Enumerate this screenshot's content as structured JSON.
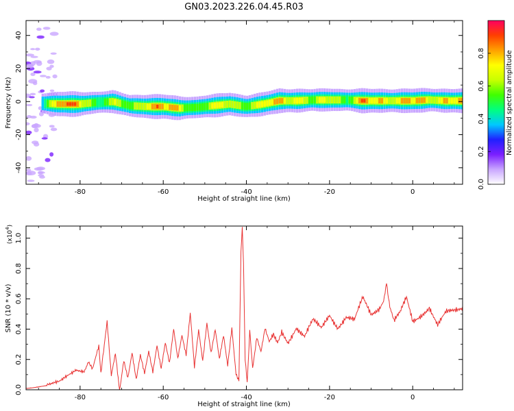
{
  "chart_data": [
    {
      "type": "heatmap",
      "title": "GN03.2023.226.04.45.R03",
      "xlabel": "Height of straight line (km)",
      "ylabel": "Frequency (Hz)",
      "xlim": [
        -93,
        12
      ],
      "ylim": [
        -50,
        49
      ],
      "x_ticks": [
        -80,
        -60,
        -40,
        -20,
        0
      ],
      "y_ticks": [
        -40,
        -20,
        0,
        20,
        40
      ],
      "colorbar": {
        "label": "Normalized spectral amplitude",
        "range": [
          0,
          1
        ],
        "ticks": [
          0.0,
          0.2,
          0.4,
          0.6,
          0.8
        ],
        "tick_labels": [
          "0.0",
          "0.2",
          "0.4",
          "0.6",
          "0.8"
        ],
        "colormap": [
          "#ffffff",
          "#c9a6ff",
          "#7b1fff",
          "#2020ff",
          "#00c8ff",
          "#00ff80",
          "#40ff00",
          "#c8ff00",
          "#ffff00",
          "#ffa000",
          "#ff4000",
          "#ff0060"
        ]
      },
      "ridge": {
        "x": [
          -90,
          -85,
          -80,
          -76,
          -72,
          -68,
          -64,
          -60,
          -56,
          -52,
          -48,
          -44,
          -40,
          -36,
          -32,
          -28,
          -24,
          -20,
          -16,
          -12,
          -8,
          -4,
          0,
          4,
          8,
          11
        ],
        "freq": [
          -1,
          -1.5,
          -1.5,
          -0.5,
          0,
          -2.5,
          -3,
          -3,
          -4,
          -3.5,
          -2.5,
          -1.5,
          -3,
          -1.5,
          0.5,
          0.5,
          1,
          1,
          1,
          0.5,
          0.5,
          0.5,
          0.5,
          1,
          0.5,
          0.5
        ],
        "amplitude": [
          0.4,
          0.95,
          0.95,
          0.6,
          0.7,
          0.6,
          0.95,
          0.9,
          0.85,
          0.6,
          0.75,
          0.8,
          0.7,
          0.8,
          0.95,
          0.9,
          0.6,
          0.85,
          0.6,
          0.9,
          0.9,
          0.85,
          0.9,
          0.85,
          0.9,
          0.85
        ]
      }
    },
    {
      "type": "line",
      "xlabel": "Height of straight line (km)",
      "ylabel": "SNR (10 * v/v)",
      "y_multiplier": "(x10",
      "y_multiplier_exp": "4",
      "y_multiplier_close": ")",
      "xlim": [
        -93,
        12
      ],
      "ylim": [
        0,
        1.08
      ],
      "x_ticks": [
        -80,
        -60,
        -40,
        -20,
        0
      ],
      "y_ticks": [
        0.0,
        0.2,
        0.4,
        0.6,
        0.8,
        1.0
      ],
      "y_tick_labels": [
        "0.0",
        "0.2",
        "0.4",
        "0.6",
        "0.8",
        "1.0"
      ],
      "color": "#e83030",
      "series": [
        {
          "x": [
            -93,
            -90,
            -87,
            -85,
            -83,
            -81,
            -79,
            -78,
            -77,
            -75.5,
            -75,
            -74.2,
            -73.5,
            -72.5,
            -71.5,
            -70.5,
            -69.5,
            -68.5,
            -67.5,
            -66.5,
            -65.5,
            -64.5,
            -63.5,
            -62.5,
            -61.5,
            -60.5,
            -59.5,
            -58.5,
            -57.5,
            -56.5,
            -55.5,
            -54.5,
            -53.5,
            -52.5,
            -51.5,
            -50.5,
            -49.5,
            -48.5,
            -47.5,
            -46.5,
            -45.5,
            -44.5,
            -43.5,
            -42.5,
            -41.8,
            -41.3,
            -41,
            -40.7,
            -40.3,
            -39.8,
            -39.2,
            -38.5,
            -37.5,
            -36.5,
            -35.5,
            -34.5,
            -33.5,
            -32.5,
            -31.5,
            -30,
            -28,
            -26,
            -24,
            -22,
            -20,
            -18,
            -16,
            -14,
            -12,
            -10,
            -8,
            -7,
            -6.3,
            -5.5,
            -4.5,
            -3,
            -1.5,
            0,
            2,
            4,
            6,
            8,
            10,
            12
          ],
          "y": [
            0.01,
            0.02,
            0.03,
            0.05,
            0.1,
            0.14,
            0.12,
            0.18,
            0.13,
            0.28,
            0.1,
            0.3,
            0.45,
            0.1,
            0.25,
            0.0,
            0.2,
            0.08,
            0.24,
            0.06,
            0.22,
            0.1,
            0.25,
            0.12,
            0.3,
            0.15,
            0.32,
            0.18,
            0.4,
            0.2,
            0.35,
            0.22,
            0.5,
            0.15,
            0.4,
            0.2,
            0.45,
            0.25,
            0.4,
            0.2,
            0.35,
            0.15,
            0.4,
            0.1,
            0.05,
            0.9,
            1.08,
            0.85,
            0.2,
            0.05,
            0.4,
            0.15,
            0.35,
            0.25,
            0.4,
            0.3,
            0.35,
            0.3,
            0.38,
            0.32,
            0.42,
            0.35,
            0.45,
            0.4,
            0.5,
            0.42,
            0.48,
            0.45,
            0.6,
            0.5,
            0.55,
            0.6,
            0.72,
            0.55,
            0.45,
            0.5,
            0.6,
            0.45,
            0.5,
            0.55,
            0.42,
            0.5,
            0.52,
            0.55
          ]
        }
      ]
    }
  ]
}
